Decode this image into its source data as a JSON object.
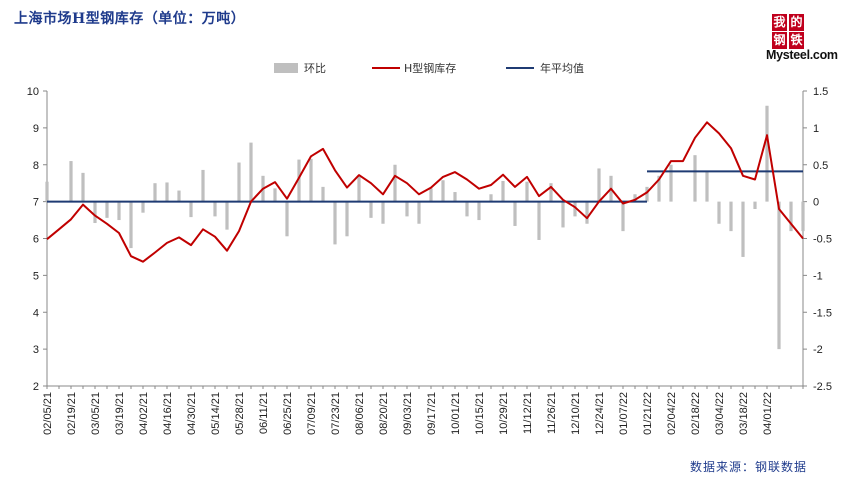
{
  "title": "上海市场H型钢库存（单位：万吨）",
  "source": "数据来源：钢联数据",
  "logo": {
    "chars": [
      "我",
      "的",
      "钢",
      "铁"
    ],
    "word": "Mysteel.com"
  },
  "colors": {
    "bar": "#bfbfbf",
    "line": "#c00000",
    "avg": "#1f3b73",
    "title": "#1f3b8c"
  },
  "chart_data": {
    "type": "bar+line",
    "title": "上海市场H型钢库存（单位：万吨）",
    "legend": [
      "环比",
      "H型钢库存",
      "年平均值"
    ],
    "legend_position": "top",
    "y_left": {
      "min": 2,
      "max": 10,
      "step": 1,
      "ticks": [
        "2",
        "3",
        "4",
        "5",
        "6",
        "7",
        "8",
        "9",
        "10"
      ]
    },
    "y_right": {
      "min": -2.5,
      "max": 1.5,
      "step": 0.5,
      "ticks": [
        "-2.5",
        "-2",
        "-1.5",
        "-1",
        "-0.5",
        "0",
        "0.5",
        "1",
        "1.5"
      ]
    },
    "x_tick_labels": [
      "02/05/21",
      "02/19/21",
      "03/05/21",
      "03/19/21",
      "04/02/21",
      "04/16/21",
      "04/30/21",
      "05/14/21",
      "05/28/21",
      "06/11/21",
      "06/25/21",
      "07/09/21",
      "07/23/21",
      "08/06/21",
      "08/20/21",
      "09/03/21",
      "09/17/21",
      "10/01/21",
      "10/15/21",
      "10/29/21",
      "11/12/21",
      "11/26/21",
      "12/10/21",
      "12/24/21",
      "01/07/22",
      "01/21/22",
      "02/04/22",
      "02/18/22",
      "03/04/22",
      "03/18/22",
      "04/01/22"
    ],
    "series": [
      {
        "name": "H型钢库存",
        "axis": "left",
        "values": [
          5.98,
          6.25,
          6.52,
          6.92,
          6.62,
          6.4,
          6.15,
          5.52,
          5.37,
          5.62,
          5.88,
          6.03,
          5.82,
          6.25,
          6.05,
          5.67,
          6.2,
          7.0,
          7.35,
          7.53,
          7.08,
          7.65,
          8.23,
          8.43,
          7.85,
          7.38,
          7.72,
          7.5,
          7.2,
          7.7,
          7.5,
          7.2,
          7.38,
          7.67,
          7.8,
          7.6,
          7.35,
          7.45,
          7.73,
          7.4,
          7.67,
          7.15,
          7.4,
          7.05,
          6.85,
          6.55,
          7.0,
          7.35,
          6.95,
          7.05,
          7.25,
          7.6,
          8.1,
          8.1,
          8.73,
          9.15,
          8.85,
          8.45,
          7.7,
          7.6,
          8.8,
          6.8,
          6.4,
          6.0
        ]
      },
      {
        "name": "环比",
        "axis": "right",
        "values": [
          0.27,
          0,
          0.55,
          0.39,
          -0.29,
          -0.22,
          -0.25,
          -0.63,
          -0.15,
          0.25,
          0.26,
          0.15,
          -0.21,
          0.43,
          -0.2,
          -0.38,
          0.53,
          0.8,
          0.35,
          0.18,
          -0.47,
          0.57,
          0.58,
          0.2,
          -0.58,
          -0.47,
          0.34,
          -0.22,
          -0.3,
          0.5,
          -0.2,
          -0.3,
          0.18,
          0.29,
          0.13,
          -0.2,
          -0.25,
          0.1,
          0.28,
          -0.33,
          0.27,
          -0.52,
          0.25,
          -0.35,
          -0.2,
          -0.3,
          0.45,
          0.35,
          -0.4,
          0.1,
          0.2,
          0.35,
          0.5,
          0,
          0.63,
          0.42,
          -0.3,
          -0.4,
          -0.75,
          -0.1,
          1.3,
          -2.0,
          -0.4,
          -0.4
        ]
      },
      {
        "name": "年平均值",
        "axis": "left",
        "segments": [
          {
            "from": 0,
            "to": 50,
            "value": 7.0
          },
          {
            "from": 50,
            "to": 63,
            "value": 7.82
          }
        ]
      }
    ]
  }
}
